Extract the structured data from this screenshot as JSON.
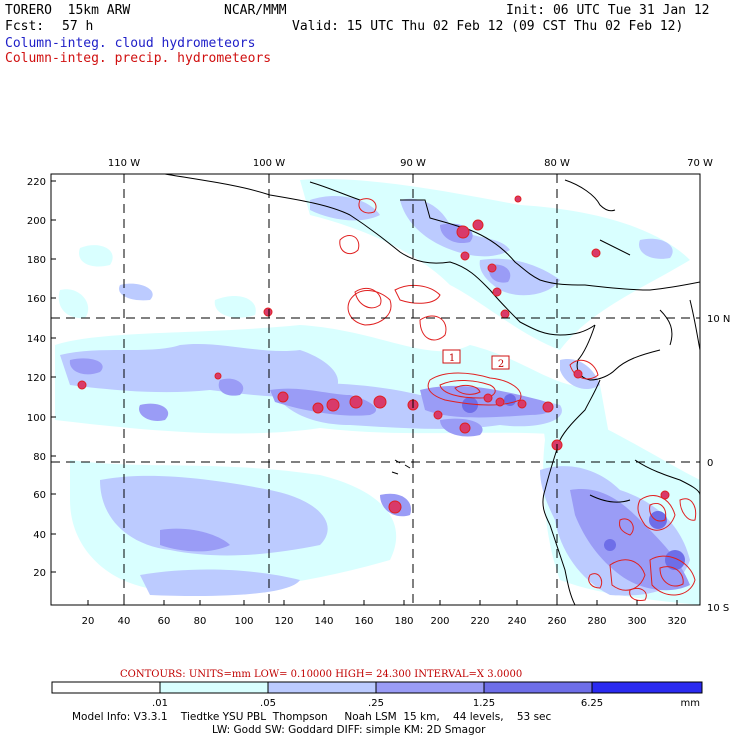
{
  "header": {
    "model": "TORERO  15km ARW",
    "org": "NCAR/MMM",
    "init": "Init: 06 UTC Tue 31 Jan 12",
    "fcst_label": "Fcst:",
    "fcst_value": "57 h",
    "valid": "Valid: 15 UTC Thu 02 Feb 12 (09 CST Thu 02 Feb 12)"
  },
  "legend": {
    "cloud": "Column-integ. cloud hydrometeors",
    "precip": "Column-integ. precip. hydrometeors"
  },
  "map": {
    "lon_labels": [
      "110 W",
      "100 W",
      "90 W",
      "80 W",
      "70 W"
    ],
    "lat_labels": [
      "10 N",
      "0",
      "10 S"
    ],
    "y_ticks": [
      "220",
      "200",
      "180",
      "160",
      "140",
      "120",
      "100",
      "80",
      "60",
      "40",
      "20"
    ],
    "x_ticks": [
      "20",
      "40",
      "60",
      "80",
      "100",
      "120",
      "140",
      "160",
      "180",
      "200",
      "220",
      "240",
      "260",
      "280",
      "300",
      "320"
    ],
    "box_labels": [
      "1",
      "2"
    ]
  },
  "contours": {
    "text": "CONTOURS:  UNITS=mm  LOW= 0.10000      HIGH=  24.300      INTERVAL=X  3.0000"
  },
  "colorbar": {
    "levels": [
      ".01",
      ".05",
      ".25",
      "1.25",
      "6.25"
    ],
    "units": "mm",
    "colors": [
      "#ffffff",
      "#d9ffff",
      "#bccbff",
      "#9a9cf6",
      "#6e6ee8",
      "#2a2af0"
    ]
  },
  "footer": {
    "line1": "Model Info: V3.3.1    Tiedtke YSU PBL  Thompson     Noah LSM  15 km,    44 levels,    53 sec",
    "line2": "LW: Godd SW: Goddard DIFF: simple KM: 2D Smagor"
  }
}
